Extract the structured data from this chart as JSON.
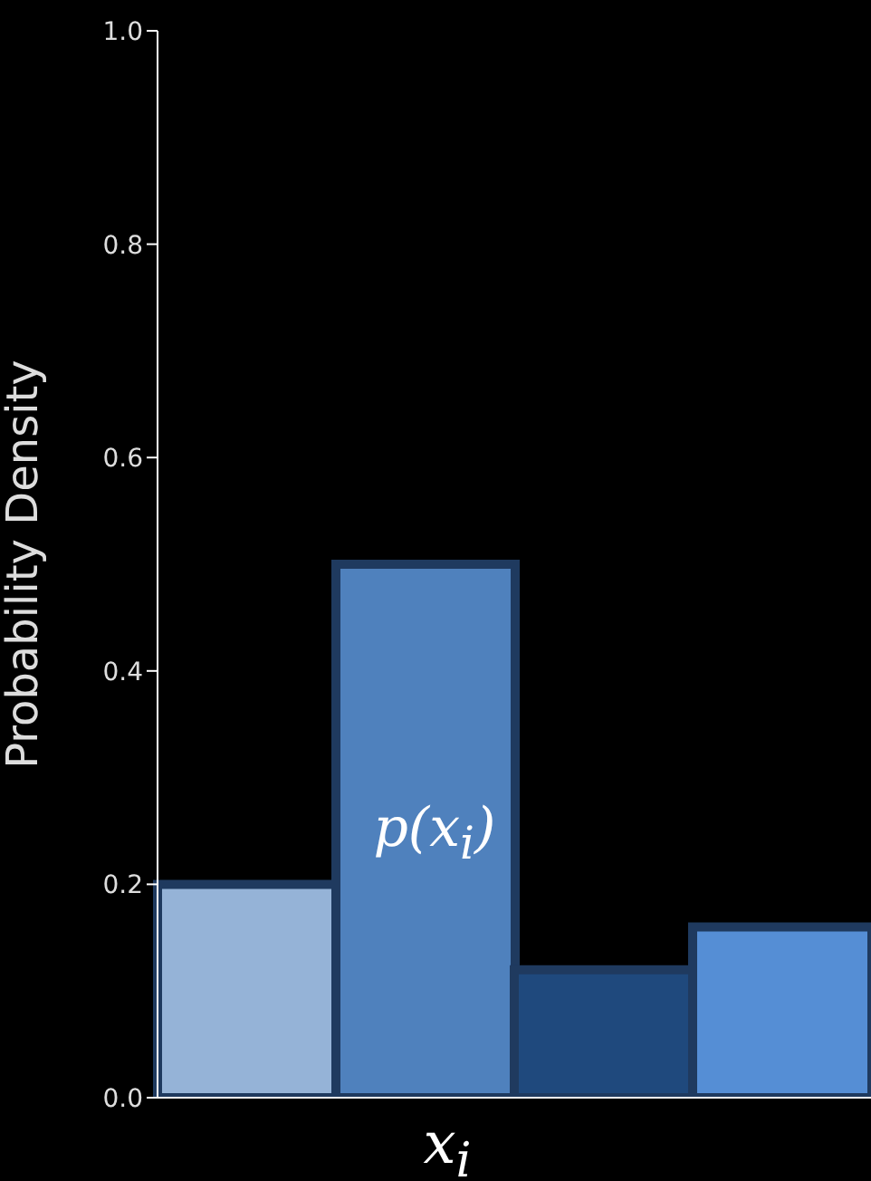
{
  "chart_data": {
    "type": "bar",
    "ylabel": "Probability Density",
    "xlabel": "x$_{i}$",
    "categories": [
      null,
      null,
      null,
      null
    ],
    "values": [
      0.2,
      0.5,
      0.12,
      0.16
    ],
    "colors": [
      "#95b3d7",
      "#4f81bd",
      "#1f497d",
      "#558ed5"
    ],
    "ylim": [
      0,
      1
    ],
    "yticks": [
      {
        "value": 0,
        "label": "0.0"
      },
      {
        "value": 0.2,
        "label": "0.2"
      },
      {
        "value": 0.4,
        "label": "0.4"
      },
      {
        "value": 0.6,
        "label": "0.6"
      },
      {
        "value": 0.8,
        "label": "0.8"
      },
      {
        "value": 1,
        "label": "1.0"
      }
    ],
    "annotations": [
      "p(x$_{i}$)"
    ]
  }
}
